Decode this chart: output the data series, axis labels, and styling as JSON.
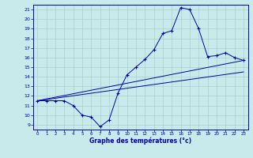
{
  "xlabel": "Graphe des températures (°c)",
  "xlim": [
    -0.5,
    23.5
  ],
  "ylim": [
    8.5,
    21.5
  ],
  "xticks": [
    0,
    1,
    2,
    3,
    4,
    5,
    6,
    7,
    8,
    9,
    10,
    11,
    12,
    13,
    14,
    15,
    16,
    17,
    18,
    19,
    20,
    21,
    22,
    23
  ],
  "yticks": [
    9,
    10,
    11,
    12,
    13,
    14,
    15,
    16,
    17,
    18,
    19,
    20,
    21
  ],
  "bg_color": "#c8eaea",
  "line_color": "#0000aa",
  "grid_color": "#a8d0d0",
  "temp_curve": {
    "x": [
      0,
      1,
      2,
      3,
      4,
      5,
      6,
      7,
      8,
      9,
      10,
      11,
      12,
      13,
      14,
      15,
      16,
      17,
      18,
      19,
      20,
      21,
      22,
      23
    ],
    "y": [
      11.5,
      11.5,
      11.5,
      11.5,
      11.0,
      10.0,
      9.8,
      8.8,
      9.5,
      12.3,
      14.2,
      15.0,
      15.8,
      16.8,
      18.5,
      18.8,
      21.2,
      21.0,
      19.0,
      16.1,
      16.2,
      16.5,
      16.0,
      15.7
    ]
  },
  "line1": {
    "x": [
      0,
      23
    ],
    "y": [
      11.5,
      15.7
    ]
  },
  "line2": {
    "x": [
      0,
      23
    ],
    "y": [
      11.5,
      14.5
    ]
  }
}
